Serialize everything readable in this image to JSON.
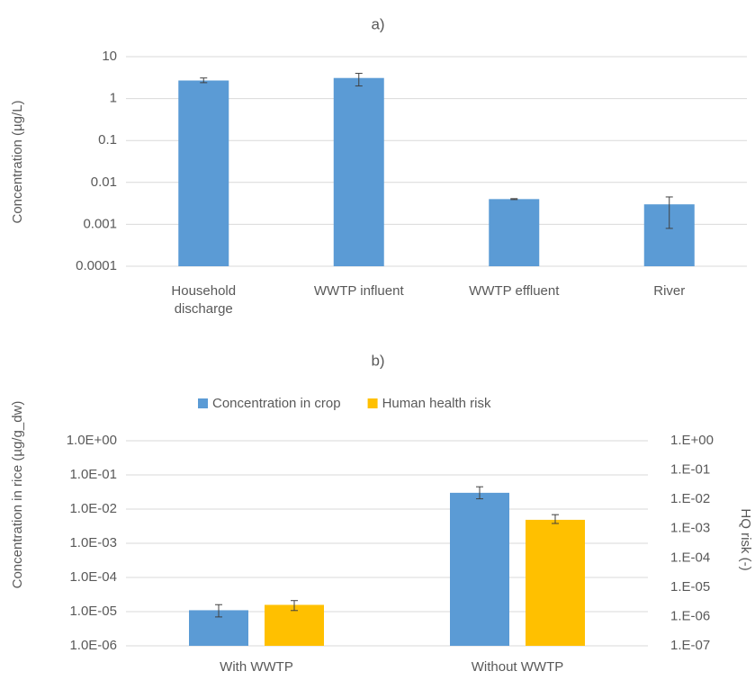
{
  "chart_data": [
    {
      "type": "bar",
      "title": "a)",
      "y_label": "Concentration (µg/L)",
      "log_y": true,
      "grid": true,
      "categories": [
        "Household discharge",
        "WWTP influent",
        "WWTP effluent",
        "River"
      ],
      "color": "#5b9bd5",
      "values": [
        2.7,
        3.1,
        0.004,
        0.003
      ],
      "errors": [
        [
          2.4,
          3.1
        ],
        [
          2.0,
          4.0
        ],
        [
          0.0039,
          0.0041
        ],
        [
          0.0008,
          0.0045
        ]
      ],
      "ylim": [
        0.0001,
        10
      ],
      "yticks": [
        0.0001,
        0.001,
        0.01,
        0.1,
        1,
        10
      ]
    },
    {
      "type": "bar",
      "title": "b)",
      "y_label": "Concentration in rice (µg/g_dw)",
      "y2_label": "HQ risk (-)",
      "log_y": true,
      "grid": true,
      "legend": "top",
      "categories": [
        "With WWTP",
        "Without WWTP"
      ],
      "series": [
        {
          "name": "Concentration in crop",
          "color": "#5b9bd5",
          "values": [
            1.1e-05,
            0.03
          ],
          "errors": [
            [
              7e-06,
              1.6e-05
            ],
            [
              0.02,
              0.045
            ]
          ]
        },
        {
          "name": "Human health risk",
          "color": "#ffc000",
          "axis": "y2",
          "values": [
            2.5e-06,
            0.002
          ],
          "errors": [
            [
              1.6e-06,
              3.5e-06
            ],
            [
              0.0015,
              0.003
            ]
          ]
        }
      ],
      "ylim": [
        1e-06,
        1
      ],
      "yticks": [
        {
          "value": 1e-06,
          "label": "1.0E-06"
        },
        {
          "value": 1e-05,
          "label": "1.0E-05"
        },
        {
          "value": 0.0001,
          "label": "1.0E-04"
        },
        {
          "value": 0.001,
          "label": "1.0E-03"
        },
        {
          "value": 0.01,
          "label": "1.0E-02"
        },
        {
          "value": 0.1,
          "label": "1.0E-01"
        },
        {
          "value": 1,
          "label": "1.0E+00"
        }
      ],
      "y2lim": [
        1e-07,
        1
      ],
      "y2ticks": [
        {
          "value": 1e-07,
          "label": "1.E-07"
        },
        {
          "value": 1e-06,
          "label": "1.E-06"
        },
        {
          "value": 1e-05,
          "label": "1.E-05"
        },
        {
          "value": 0.0001,
          "label": "1.E-04"
        },
        {
          "value": 0.001,
          "label": "1.E-03"
        },
        {
          "value": 0.01,
          "label": "1.E-02"
        },
        {
          "value": 0.1,
          "label": "1.E-01"
        },
        {
          "value": 1,
          "label": "1.E+00"
        }
      ]
    }
  ]
}
